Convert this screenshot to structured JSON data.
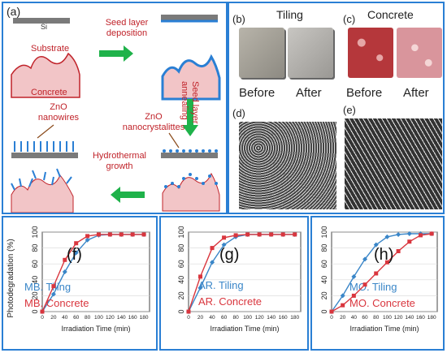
{
  "panel_a": {
    "label": "(a)",
    "si": "Si",
    "substrate": "Substrate",
    "concrete": "Concrete",
    "seed_deposition": [
      "Seed layer",
      "deposition"
    ],
    "seed_annealing": [
      "Seed layer",
      "annealing"
    ],
    "zno_nanocrystals": [
      "ZnO",
      "nanocrystalittes"
    ],
    "zno_nanowires": [
      "ZnO",
      "nanowires"
    ],
    "hydrothermal": [
      "Hydrothermal",
      "growth"
    ]
  },
  "panel_b": {
    "label": "(b)",
    "title": "Tiling",
    "before": "Before",
    "after": "After"
  },
  "panel_c": {
    "label": "(c)",
    "title": "Concrete",
    "before": "Before",
    "after": "After"
  },
  "panel_d": {
    "label": "(d)"
  },
  "panel_e": {
    "label": "(e)"
  },
  "colors": {
    "tiling": "#3a86c8",
    "concrete": "#d9363e",
    "accent": "#2a7fd4",
    "arrow": "#1fb24a",
    "label_red": "#c0232a"
  },
  "chart_data": [
    {
      "type": "line",
      "label": "(f)",
      "ylabel": "Photodegradation (%)",
      "xlabel": "Irradiation Time (min)",
      "xlim": [
        0,
        190
      ],
      "ylim": [
        0,
        100
      ],
      "xticks": [
        0,
        20,
        40,
        60,
        80,
        100,
        120,
        140,
        160,
        180
      ],
      "yticks": [
        0,
        20,
        40,
        60,
        80,
        100
      ],
      "series": [
        {
          "name": "MB. Tiling",
          "x": [
            0,
            20,
            40,
            60,
            80,
            100,
            120,
            140,
            160,
            180
          ],
          "values": [
            0,
            22,
            50,
            74,
            90,
            96,
            97,
            97,
            97,
            97
          ]
        },
        {
          "name": "MB. Concrete",
          "x": [
            0,
            20,
            40,
            60,
            80,
            100,
            120,
            140,
            160,
            180
          ],
          "values": [
            0,
            32,
            65,
            86,
            95,
            97,
            97,
            97,
            97,
            97
          ]
        }
      ]
    },
    {
      "type": "line",
      "label": "(g)",
      "ylabel": "",
      "xlabel": "Irradiation Time (min)",
      "xlim": [
        0,
        190
      ],
      "ylim": [
        0,
        100
      ],
      "xticks": [
        0,
        20,
        40,
        60,
        80,
        100,
        120,
        140,
        160,
        180
      ],
      "yticks": [
        0,
        20,
        40,
        60,
        80,
        100
      ],
      "series": [
        {
          "name": "AR. Tiling",
          "x": [
            0,
            20,
            40,
            60,
            80,
            100,
            120,
            140,
            160,
            180
          ],
          "values": [
            0,
            30,
            62,
            84,
            94,
            97,
            97,
            97,
            97,
            97
          ]
        },
        {
          "name": "AR. Concrete",
          "x": [
            0,
            20,
            40,
            60,
            80,
            100,
            120,
            140,
            160,
            180
          ],
          "values": [
            0,
            44,
            80,
            93,
            96,
            97,
            97,
            97,
            97,
            97
          ]
        }
      ]
    },
    {
      "type": "line",
      "label": "(h)",
      "ylabel": "",
      "xlabel": "Irradiation Time (min)",
      "xlim": [
        0,
        190
      ],
      "ylim": [
        0,
        100
      ],
      "xticks": [
        0,
        20,
        40,
        60,
        80,
        100,
        120,
        140,
        160,
        180
      ],
      "yticks": [
        0,
        20,
        40,
        60,
        80,
        100
      ],
      "series": [
        {
          "name": "MO. Tiling",
          "x": [
            0,
            20,
            40,
            60,
            80,
            100,
            120,
            140,
            160,
            180
          ],
          "values": [
            0,
            20,
            44,
            66,
            84,
            94,
            97,
            98,
            98,
            98
          ]
        },
        {
          "name": "MO. Concrete",
          "x": [
            0,
            20,
            40,
            60,
            80,
            100,
            120,
            140,
            160,
            180
          ],
          "values": [
            0,
            8,
            20,
            34,
            48,
            62,
            76,
            88,
            96,
            98
          ]
        }
      ]
    }
  ]
}
